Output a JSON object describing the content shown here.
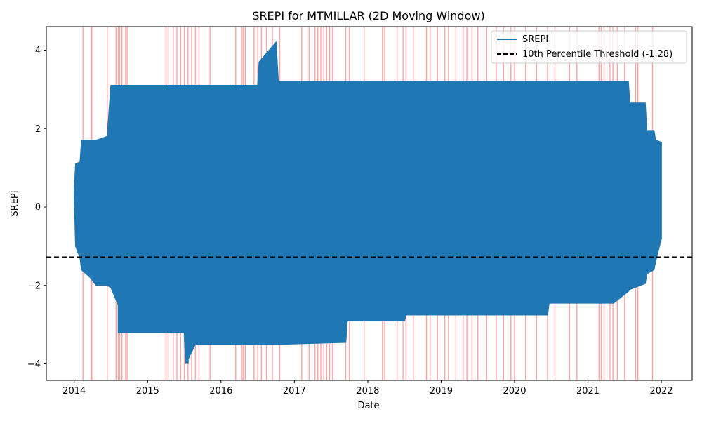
{
  "chart_data": {
    "type": "line",
    "title": "SREPI for MTMILLAR (2D Moving Window)",
    "xlabel": "Date",
    "ylabel": "SREPI",
    "xlim": [
      2013.62,
      2022.42
    ],
    "ylim": [
      -4.42,
      4.6
    ],
    "x_ticks": [
      2014,
      2015,
      2016,
      2017,
      2018,
      2019,
      2020,
      2021,
      2022
    ],
    "x_tick_labels": [
      "2014",
      "2015",
      "2016",
      "2017",
      "2018",
      "2019",
      "2020",
      "2021",
      "2022"
    ],
    "y_ticks": [
      -4,
      -2,
      0,
      2,
      4
    ],
    "y_tick_labels": [
      "−4",
      "−2",
      "0",
      "2",
      "4"
    ],
    "threshold": {
      "value": -1.28,
      "label": "10th Percentile Threshold (-1.28)",
      "style": "dashed",
      "color": "#000000"
    },
    "series": [
      {
        "name": "SREPI",
        "color": "#1f77b4",
        "envelope": [
          {
            "x": 2014.0,
            "upper": 0.4,
            "lower": 0.3
          },
          {
            "x": 2014.02,
            "upper": 1.1,
            "lower": -1.0
          },
          {
            "x": 2014.08,
            "upper": 1.15,
            "lower": -1.3
          },
          {
            "x": 2014.1,
            "upper": 1.7,
            "lower": -1.6
          },
          {
            "x": 2014.22,
            "upper": 1.7,
            "lower": -1.8
          },
          {
            "x": 2014.3,
            "upper": 1.7,
            "lower": -2.0
          },
          {
            "x": 2014.45,
            "upper": 1.8,
            "lower": -2.0
          },
          {
            "x": 2014.5,
            "upper": 3.1,
            "lower": -2.05
          },
          {
            "x": 2014.6,
            "upper": 3.1,
            "lower": -2.5
          },
          {
            "x": 2014.6,
            "upper": 3.1,
            "lower": -3.2
          },
          {
            "x": 2015.5,
            "upper": 3.1,
            "lower": -3.2
          },
          {
            "x": 2015.52,
            "upper": 3.1,
            "lower": -4.0
          },
          {
            "x": 2015.65,
            "upper": 3.1,
            "lower": -3.5
          },
          {
            "x": 2016.5,
            "upper": 3.1,
            "lower": -3.5
          },
          {
            "x": 2016.52,
            "upper": 3.7,
            "lower": -3.5
          },
          {
            "x": 2016.75,
            "upper": 4.2,
            "lower": -3.5
          },
          {
            "x": 2016.78,
            "upper": 3.2,
            "lower": -3.5
          },
          {
            "x": 2017.7,
            "upper": 3.2,
            "lower": -3.45
          },
          {
            "x": 2017.72,
            "upper": 3.2,
            "lower": -2.9
          },
          {
            "x": 2018.5,
            "upper": 3.2,
            "lower": -2.9
          },
          {
            "x": 2018.52,
            "upper": 3.2,
            "lower": -2.75
          },
          {
            "x": 2020.45,
            "upper": 3.2,
            "lower": -2.75
          },
          {
            "x": 2020.47,
            "upper": 3.2,
            "lower": -2.45
          },
          {
            "x": 2021.35,
            "upper": 3.2,
            "lower": -2.45
          },
          {
            "x": 2021.55,
            "upper": 3.2,
            "lower": -2.15
          },
          {
            "x": 2021.57,
            "upper": 2.65,
            "lower": -2.1
          },
          {
            "x": 2021.78,
            "upper": 2.65,
            "lower": -1.95
          },
          {
            "x": 2021.8,
            "upper": 1.95,
            "lower": -1.7
          },
          {
            "x": 2021.9,
            "upper": 1.95,
            "lower": -1.6
          },
          {
            "x": 2021.92,
            "upper": 1.7,
            "lower": -1.4
          },
          {
            "x": 2022.0,
            "upper": 1.65,
            "lower": -0.8
          }
        ],
        "spike": {
          "x": 2016.75,
          "y": 4.2
        },
        "minimum": {
          "x": 2015.55,
          "y": -4.0
        }
      }
    ],
    "highlight_periods": {
      "color": "#ff9a9a",
      "meaning": "SREPI below threshold",
      "dates": [
        2014.12,
        2014.23,
        2014.24,
        2014.45,
        2014.57,
        2014.6,
        2014.62,
        2014.65,
        2014.7,
        2014.72,
        2015.25,
        2015.28,
        2015.35,
        2015.4,
        2015.45,
        2015.5,
        2015.55,
        2015.6,
        2015.65,
        2015.7,
        2015.85,
        2016.2,
        2016.28,
        2016.3,
        2016.33,
        2016.45,
        2016.5,
        2016.55,
        2016.62,
        2016.7,
        2016.8,
        2017.1,
        2017.2,
        2017.28,
        2017.32,
        2017.36,
        2017.4,
        2017.44,
        2017.48,
        2017.52,
        2017.7,
        2017.75,
        2017.95,
        2018.2,
        2018.23,
        2018.4,
        2018.48,
        2018.52,
        2018.62,
        2018.8,
        2018.85,
        2018.95,
        2019.05,
        2019.1,
        2019.2,
        2019.3,
        2019.35,
        2019.42,
        2019.5,
        2019.62,
        2019.75,
        2019.85,
        2019.95,
        2020.0,
        2020.15,
        2020.3,
        2020.45,
        2020.55,
        2020.75,
        2020.85,
        2021.15,
        2021.18,
        2021.22,
        2021.3,
        2021.34,
        2021.4,
        2021.5,
        2021.65,
        2021.68,
        2021.88
      ]
    },
    "legend": {
      "position": "top-right",
      "entries": [
        {
          "label": "SREPI",
          "style": "solid",
          "color": "#1f77b4"
        },
        {
          "label": "10th Percentile Threshold (-1.28)",
          "style": "dashed",
          "color": "#000000"
        }
      ]
    }
  }
}
